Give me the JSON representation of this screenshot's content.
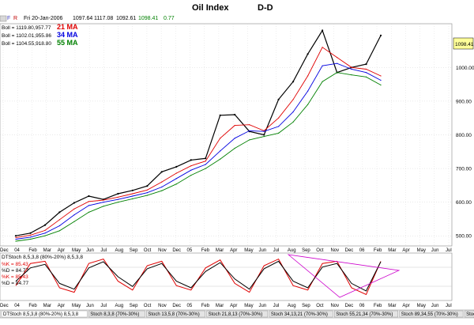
{
  "header": {
    "f_label": "F",
    "r_label": "R",
    "date_info": "Fri 20-Jan-2006",
    "open": "1097.64",
    "high": "1117.08",
    "low": "1092.61",
    "close": "1098.41",
    "change": "0.77",
    "title": "Oil Index",
    "period": "D-D"
  },
  "legend": [
    {
      "text": "Boll = 1119.80,957.77",
      "ma": "21 MA",
      "color": "#e00000"
    },
    {
      "text": "Boll = 1102.01,955.86",
      "ma": "34 MA",
      "color": "#0000e0"
    },
    {
      "text": "Boll = 1104.55,918.80",
      "ma": "55 MA",
      "color": "#008000"
    }
  ],
  "price_label": "1098.41",
  "stoch_legend": {
    "title": "DTStoch 8,5,3,8 (80%-20%) 8,5,3,8",
    "lines": [
      "%K = 85.43",
      "%D = 84.77",
      "%K = 85.43",
      "%D = 84.77"
    ]
  },
  "bottom_tabs": [
    "DTStoch 8,5,3,8 (80%-20%) 8,5,3,8",
    "Stoch 8,3,8 (70%-30%)",
    "Stoch 13,5,8 (70%-30%)",
    "Stoch 21,8,13 (70%-30%)",
    "Stoch 34,13,21 (70%-30%)",
    "Stoch 55,21,34 (70%-30%)",
    "Stoch 89,34,55 (70%-30%)",
    "Stoch 144,55,89 (70%-30%)"
  ],
  "colors": {
    "price": "#000000",
    "ma21": "#e00000",
    "ma34": "#0000e0",
    "ma55": "#008000",
    "stochK": "#e00000",
    "stochD": "#000000",
    "triangle": "#cc00cc",
    "grid": "#c8c8c8"
  },
  "chart_data": {
    "type": "line",
    "title": "Oil Index",
    "subtitle": "D-D",
    "y_ticks": [
      500,
      600,
      700,
      800,
      900,
      1000
    ],
    "ylim": [
      470,
      1130
    ],
    "x_ticks": [
      "Dec",
      "04",
      "Feb",
      "Mar",
      "Apr",
      "May",
      "Jun",
      "Jul",
      "Aug",
      "Sep",
      "Oct",
      "Nov",
      "Dec",
      "05",
      "Feb",
      "Mar",
      "Apr",
      "May",
      "Jun",
      "Jul",
      "Aug",
      "Sep",
      "Oct",
      "Nov",
      "Dec",
      "06",
      "Feb",
      "Mar",
      "Apr",
      "May",
      "Jun",
      "Jul"
    ],
    "x_index": [
      0,
      1,
      2,
      3,
      4,
      5,
      6,
      7,
      8,
      9,
      10,
      11,
      12,
      13,
      14,
      15,
      16,
      17,
      18,
      19,
      20,
      21,
      22,
      23,
      24,
      25
    ],
    "series": [
      {
        "name": "Close",
        "values": [
          500,
          508,
          532,
          570,
          598,
          618,
          608,
          625,
          635,
          648,
          690,
          705,
          725,
          730,
          858,
          860,
          810,
          800,
          905,
          958,
          1040,
          1110,
          985,
          1000,
          1010,
          1095
        ]
      },
      {
        "name": "21 MA",
        "values": [
          495,
          502,
          516,
          548,
          580,
          602,
          606,
          615,
          625,
          636,
          660,
          686,
          708,
          722,
          790,
          828,
          830,
          812,
          850,
          905,
          975,
          1060,
          1030,
          1000,
          995,
          975
        ]
      },
      {
        "name": "34 MA",
        "values": [
          490,
          496,
          508,
          530,
          562,
          590,
          600,
          608,
          618,
          628,
          645,
          670,
          695,
          712,
          752,
          790,
          812,
          810,
          825,
          868,
          930,
          1005,
          1012,
          995,
          985,
          962
        ]
      },
      {
        "name": "55 MA",
        "values": [
          484,
          490,
          500,
          515,
          542,
          570,
          588,
          600,
          610,
          620,
          634,
          654,
          680,
          700,
          728,
          760,
          785,
          795,
          805,
          838,
          890,
          958,
          985,
          978,
          972,
          948
        ]
      }
    ],
    "stochastic": {
      "k": 85.43,
      "d": 84.77,
      "ylim": [
        0,
        100
      ],
      "k_values": [
        30,
        80,
        85,
        25,
        15,
        80,
        90,
        40,
        20,
        75,
        85,
        30,
        20,
        70,
        88,
        35,
        15,
        75,
        90,
        30,
        20,
        80,
        85,
        25,
        10,
        85
      ],
      "d_values": [
        40,
        70,
        78,
        35,
        22,
        70,
        84,
        50,
        28,
        68,
        80,
        40,
        25,
        62,
        82,
        45,
        22,
        68,
        85,
        40,
        25,
        72,
        80,
        35,
        18,
        84
      ]
    }
  }
}
